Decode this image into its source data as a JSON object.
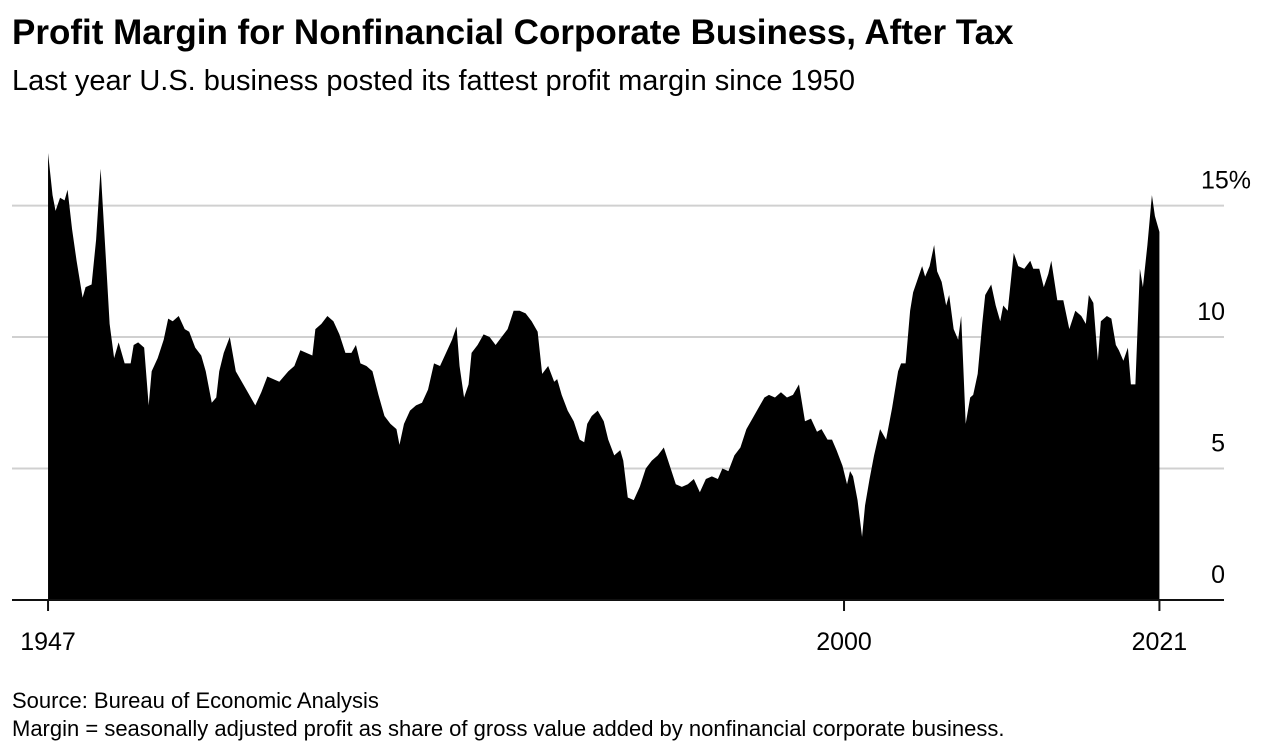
{
  "chart_data": {
    "type": "area",
    "title": "Profit Margin for Nonfinancial Corporate Business, After Tax",
    "subtitle": "Last year U.S. business posted its fattest profit margin since 1950",
    "source": "Source: Bureau of Economic Analysis",
    "note": "Margin = seasonally adjusted profit as share of gross value added by nonfinancial corporate business.",
    "color": "#000000",
    "grid": true,
    "xlim": [
      1944.6,
      2025.3
    ],
    "xticks": [
      1947,
      2000,
      2021
    ],
    "ylim": [
      0,
      17.2
    ],
    "yticks": [
      0,
      5,
      10,
      {
        "value": 15,
        "label": "15%"
      }
    ],
    "x": [
      1947.0,
      1947.3,
      1947.5,
      1947.8,
      1948.1,
      1948.3,
      1948.6,
      1948.9,
      1949.3,
      1949.5,
      1949.9,
      1950.2,
      1950.5,
      1950.9,
      1951.1,
      1951.4,
      1951.7,
      1952.1,
      1952.5,
      1952.7,
      1953.0,
      1953.4,
      1953.7,
      1953.9,
      1954.3,
      1954.7,
      1955.0,
      1955.3,
      1955.7,
      1956.1,
      1956.4,
      1956.8,
      1957.2,
      1957.5,
      1957.9,
      1958.2,
      1958.4,
      1958.7,
      1959.1,
      1959.5,
      1959.8,
      1960.2,
      1960.8,
      1961.2,
      1961.6,
      1962.0,
      1962.4,
      1963.0,
      1963.4,
      1963.8,
      1964.2,
      1964.6,
      1964.8,
      1965.2,
      1965.6,
      1966.0,
      1966.4,
      1966.8,
      1967.2,
      1967.5,
      1967.8,
      1968.2,
      1968.6,
      1969.0,
      1969.4,
      1969.8,
      1970.2,
      1970.4,
      1970.7,
      1971.1,
      1971.5,
      1971.9,
      1972.3,
      1972.7,
      1973.1,
      1973.5,
      1973.9,
      1974.2,
      1974.4,
      1974.7,
      1975.0,
      1975.2,
      1975.6,
      1976.0,
      1976.4,
      1976.8,
      1977.2,
      1977.6,
      1978.0,
      1978.4,
      1978.8,
      1979.2,
      1979.6,
      1979.9,
      1980.3,
      1980.7,
      1980.9,
      1981.2,
      1981.6,
      1982.0,
      1982.4,
      1982.7,
      1982.9,
      1983.2,
      1983.6,
      1984.0,
      1984.3,
      1984.7,
      1985.1,
      1985.3,
      1985.6,
      1986.0,
      1986.4,
      1986.8,
      1987.2,
      1987.6,
      1988.0,
      1988.4,
      1988.8,
      1989.2,
      1989.6,
      1990.0,
      1990.4,
      1990.8,
      1991.2,
      1991.6,
      1991.9,
      1992.3,
      1992.7,
      1993.1,
      1993.5,
      1993.9,
      1994.3,
      1994.7,
      1995.0,
      1995.4,
      1995.8,
      1996.2,
      1996.6,
      1997.0,
      1997.4,
      1997.8,
      1998.2,
      1998.5,
      1998.9,
      1999.2,
      1999.5,
      1999.9,
      2000.2,
      2000.4,
      2000.6,
      2000.9,
      2001.2,
      2001.4,
      2001.7,
      2002.0,
      2002.4,
      2002.8,
      2003.2,
      2003.6,
      2003.8,
      2004.1,
      2004.4,
      2004.6,
      2004.9,
      2005.2,
      2005.4,
      2005.7,
      2006.0,
      2006.2,
      2006.5,
      2006.8,
      2007.0,
      2007.3,
      2007.6,
      2007.8,
      2008.1,
      2008.4,
      2008.6,
      2008.9,
      2009.2,
      2009.4,
      2009.8,
      2010.1,
      2010.4,
      2010.6,
      2010.9,
      2011.3,
      2011.6,
      2012.0,
      2012.4,
      2012.6,
      2013.0,
      2013.3,
      2013.6,
      2013.8,
      2014.2,
      2014.6,
      2015.0,
      2015.4,
      2015.8,
      2016.1,
      2016.3,
      2016.6,
      2016.9,
      2017.1,
      2017.5,
      2017.8,
      2018.1,
      2018.3,
      2018.6,
      2018.9,
      2019.1,
      2019.4,
      2019.7,
      2019.9,
      2020.2,
      2020.5,
      2020.7,
      2021.0
    ],
    "values": [
      17.0,
      15.4,
      14.8,
      15.3,
      15.2,
      15.6,
      14.1,
      12.9,
      11.5,
      11.9,
      12.0,
      13.7,
      16.4,
      12.5,
      10.5,
      9.2,
      9.8,
      9.0,
      9.0,
      9.7,
      9.8,
      9.6,
      7.4,
      8.7,
      9.2,
      9.9,
      10.7,
      10.6,
      10.8,
      10.3,
      10.2,
      9.6,
      9.3,
      8.7,
      7.5,
      7.7,
      8.7,
      9.4,
      10.0,
      8.7,
      8.4,
      8.0,
      7.4,
      7.9,
      8.5,
      8.4,
      8.3,
      8.7,
      8.9,
      9.5,
      9.4,
      9.3,
      10.3,
      10.5,
      10.8,
      10.6,
      10.1,
      9.4,
      9.4,
      9.7,
      9.0,
      8.9,
      8.7,
      7.8,
      7.0,
      6.7,
      6.5,
      5.9,
      6.7,
      7.2,
      7.4,
      7.5,
      8.0,
      9.0,
      8.9,
      9.4,
      9.9,
      10.4,
      8.9,
      7.7,
      8.2,
      9.4,
      9.7,
      10.1,
      10.0,
      9.7,
      10.0,
      10.3,
      11.0,
      11.0,
      10.9,
      10.6,
      10.2,
      8.6,
      8.9,
      8.3,
      8.4,
      7.8,
      7.2,
      6.8,
      6.1,
      6.0,
      6.7,
      7.0,
      7.2,
      6.8,
      6.1,
      5.5,
      5.7,
      5.3,
      3.9,
      3.8,
      4.3,
      5.0,
      5.3,
      5.5,
      5.8,
      5.1,
      4.4,
      4.3,
      4.4,
      4.6,
      4.1,
      4.6,
      4.7,
      4.6,
      5.0,
      4.9,
      5.5,
      5.8,
      6.5,
      6.9,
      7.3,
      7.7,
      7.8,
      7.7,
      7.9,
      7.7,
      7.8,
      8.2,
      6.8,
      6.9,
      6.4,
      6.5,
      6.1,
      6.1,
      5.7,
      5.1,
      4.4,
      4.9,
      4.7,
      3.8,
      2.4,
      3.6,
      4.6,
      5.5,
      6.5,
      6.1,
      7.3,
      8.7,
      9.0,
      9.0,
      11.0,
      11.7,
      12.2,
      12.7,
      12.3,
      12.7,
      13.5,
      12.5,
      12.1,
      11.2,
      11.6,
      10.3,
      9.9,
      10.8,
      6.7,
      7.7,
      7.8,
      8.6,
      10.5,
      11.6,
      12.0,
      11.2,
      10.6,
      11.2,
      11.0,
      13.2,
      12.7,
      12.6,
      12.9,
      12.6,
      12.6,
      11.9,
      12.4,
      12.9,
      11.4,
      11.4,
      10.3,
      11.0,
      10.8,
      10.5,
      11.6,
      11.3,
      9.1,
      10.6,
      10.8,
      10.7,
      9.7,
      9.5,
      9.1,
      9.6,
      8.2,
      8.2,
      12.6,
      11.9,
      13.5,
      15.4,
      14.6,
      14.0
    ]
  }
}
